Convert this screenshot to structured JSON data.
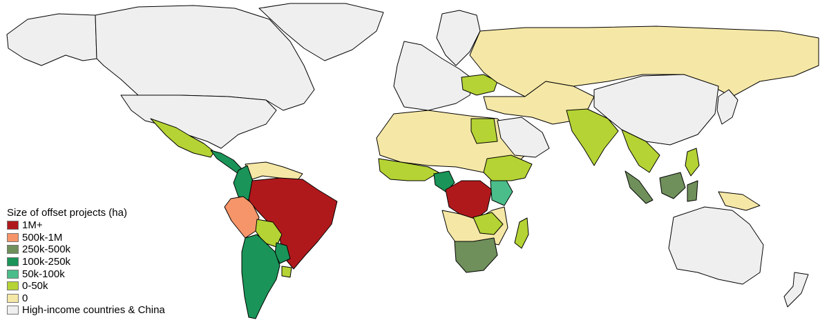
{
  "legend": {
    "title": "Size of offset projects (ha)",
    "items": [
      {
        "label": "1M+",
        "color": "#b0191c"
      },
      {
        "label": "500k-1M",
        "color": "#f59569"
      },
      {
        "label": "250k-500k",
        "color": "#6f8f5b"
      },
      {
        "label": "100k-250k",
        "color": "#1a9458"
      },
      {
        "label": "50k-100k",
        "color": "#4bbd8a"
      },
      {
        "label": "0-50k",
        "color": "#b5d334"
      },
      {
        "label": "0",
        "color": "#f5e7a6"
      },
      {
        "label": "High-income countries & China",
        "color": "#efefef"
      }
    ]
  },
  "regions": [
    {
      "name": "canada",
      "category": "High-income countries & China"
    },
    {
      "name": "united-states",
      "category": "High-income countries & China"
    },
    {
      "name": "alaska",
      "category": "High-income countries & China"
    },
    {
      "name": "greenland",
      "category": "High-income countries & China"
    },
    {
      "name": "mexico",
      "category": "0-50k"
    },
    {
      "name": "central-america",
      "category": "100k-250k"
    },
    {
      "name": "colombia",
      "category": "100k-250k"
    },
    {
      "name": "venezuela-guianas",
      "category": "0"
    },
    {
      "name": "peru",
      "category": "500k-1M"
    },
    {
      "name": "brazil",
      "category": "1M+"
    },
    {
      "name": "bolivia",
      "category": "0-50k"
    },
    {
      "name": "paraguay",
      "category": "100k-250k"
    },
    {
      "name": "chile-argentina",
      "category": "100k-250k"
    },
    {
      "name": "uruguay",
      "category": "0-50k"
    },
    {
      "name": "western-europe",
      "category": "High-income countries & China"
    },
    {
      "name": "scandinavia",
      "category": "High-income countries & China"
    },
    {
      "name": "ukraine",
      "category": "0-50k"
    },
    {
      "name": "russia",
      "category": "0"
    },
    {
      "name": "north-africa-sahel",
      "category": "0"
    },
    {
      "name": "egypt",
      "category": "0-50k"
    },
    {
      "name": "west-africa",
      "category": "0-50k"
    },
    {
      "name": "cameroon",
      "category": "100k-250k"
    },
    {
      "name": "dr-congo",
      "category": "1M+"
    },
    {
      "name": "kenya",
      "category": "50k-100k"
    },
    {
      "name": "east-africa",
      "category": "0-50k"
    },
    {
      "name": "southern-africa",
      "category": "0"
    },
    {
      "name": "zimbabwe",
      "category": "0-50k"
    },
    {
      "name": "south-africa",
      "category": "250k-500k"
    },
    {
      "name": "madagascar",
      "category": "0-50k"
    },
    {
      "name": "arabia",
      "category": "High-income countries & China"
    },
    {
      "name": "middle-east-central-asia",
      "category": "0"
    },
    {
      "name": "india",
      "category": "0-50k"
    },
    {
      "name": "china",
      "category": "High-income countries & China"
    },
    {
      "name": "japan-korea",
      "category": "High-income countries & China"
    },
    {
      "name": "southeast-asia",
      "category": "0-50k"
    },
    {
      "name": "sumatra",
      "category": "250k-500k"
    },
    {
      "name": "borneo",
      "category": "250k-500k"
    },
    {
      "name": "sulawesi",
      "category": "250k-500k"
    },
    {
      "name": "philippines",
      "category": "0-50k"
    },
    {
      "name": "papua",
      "category": "0"
    },
    {
      "name": "australia",
      "category": "High-income countries & China"
    },
    {
      "name": "new-zealand",
      "category": "High-income countries & China"
    }
  ]
}
